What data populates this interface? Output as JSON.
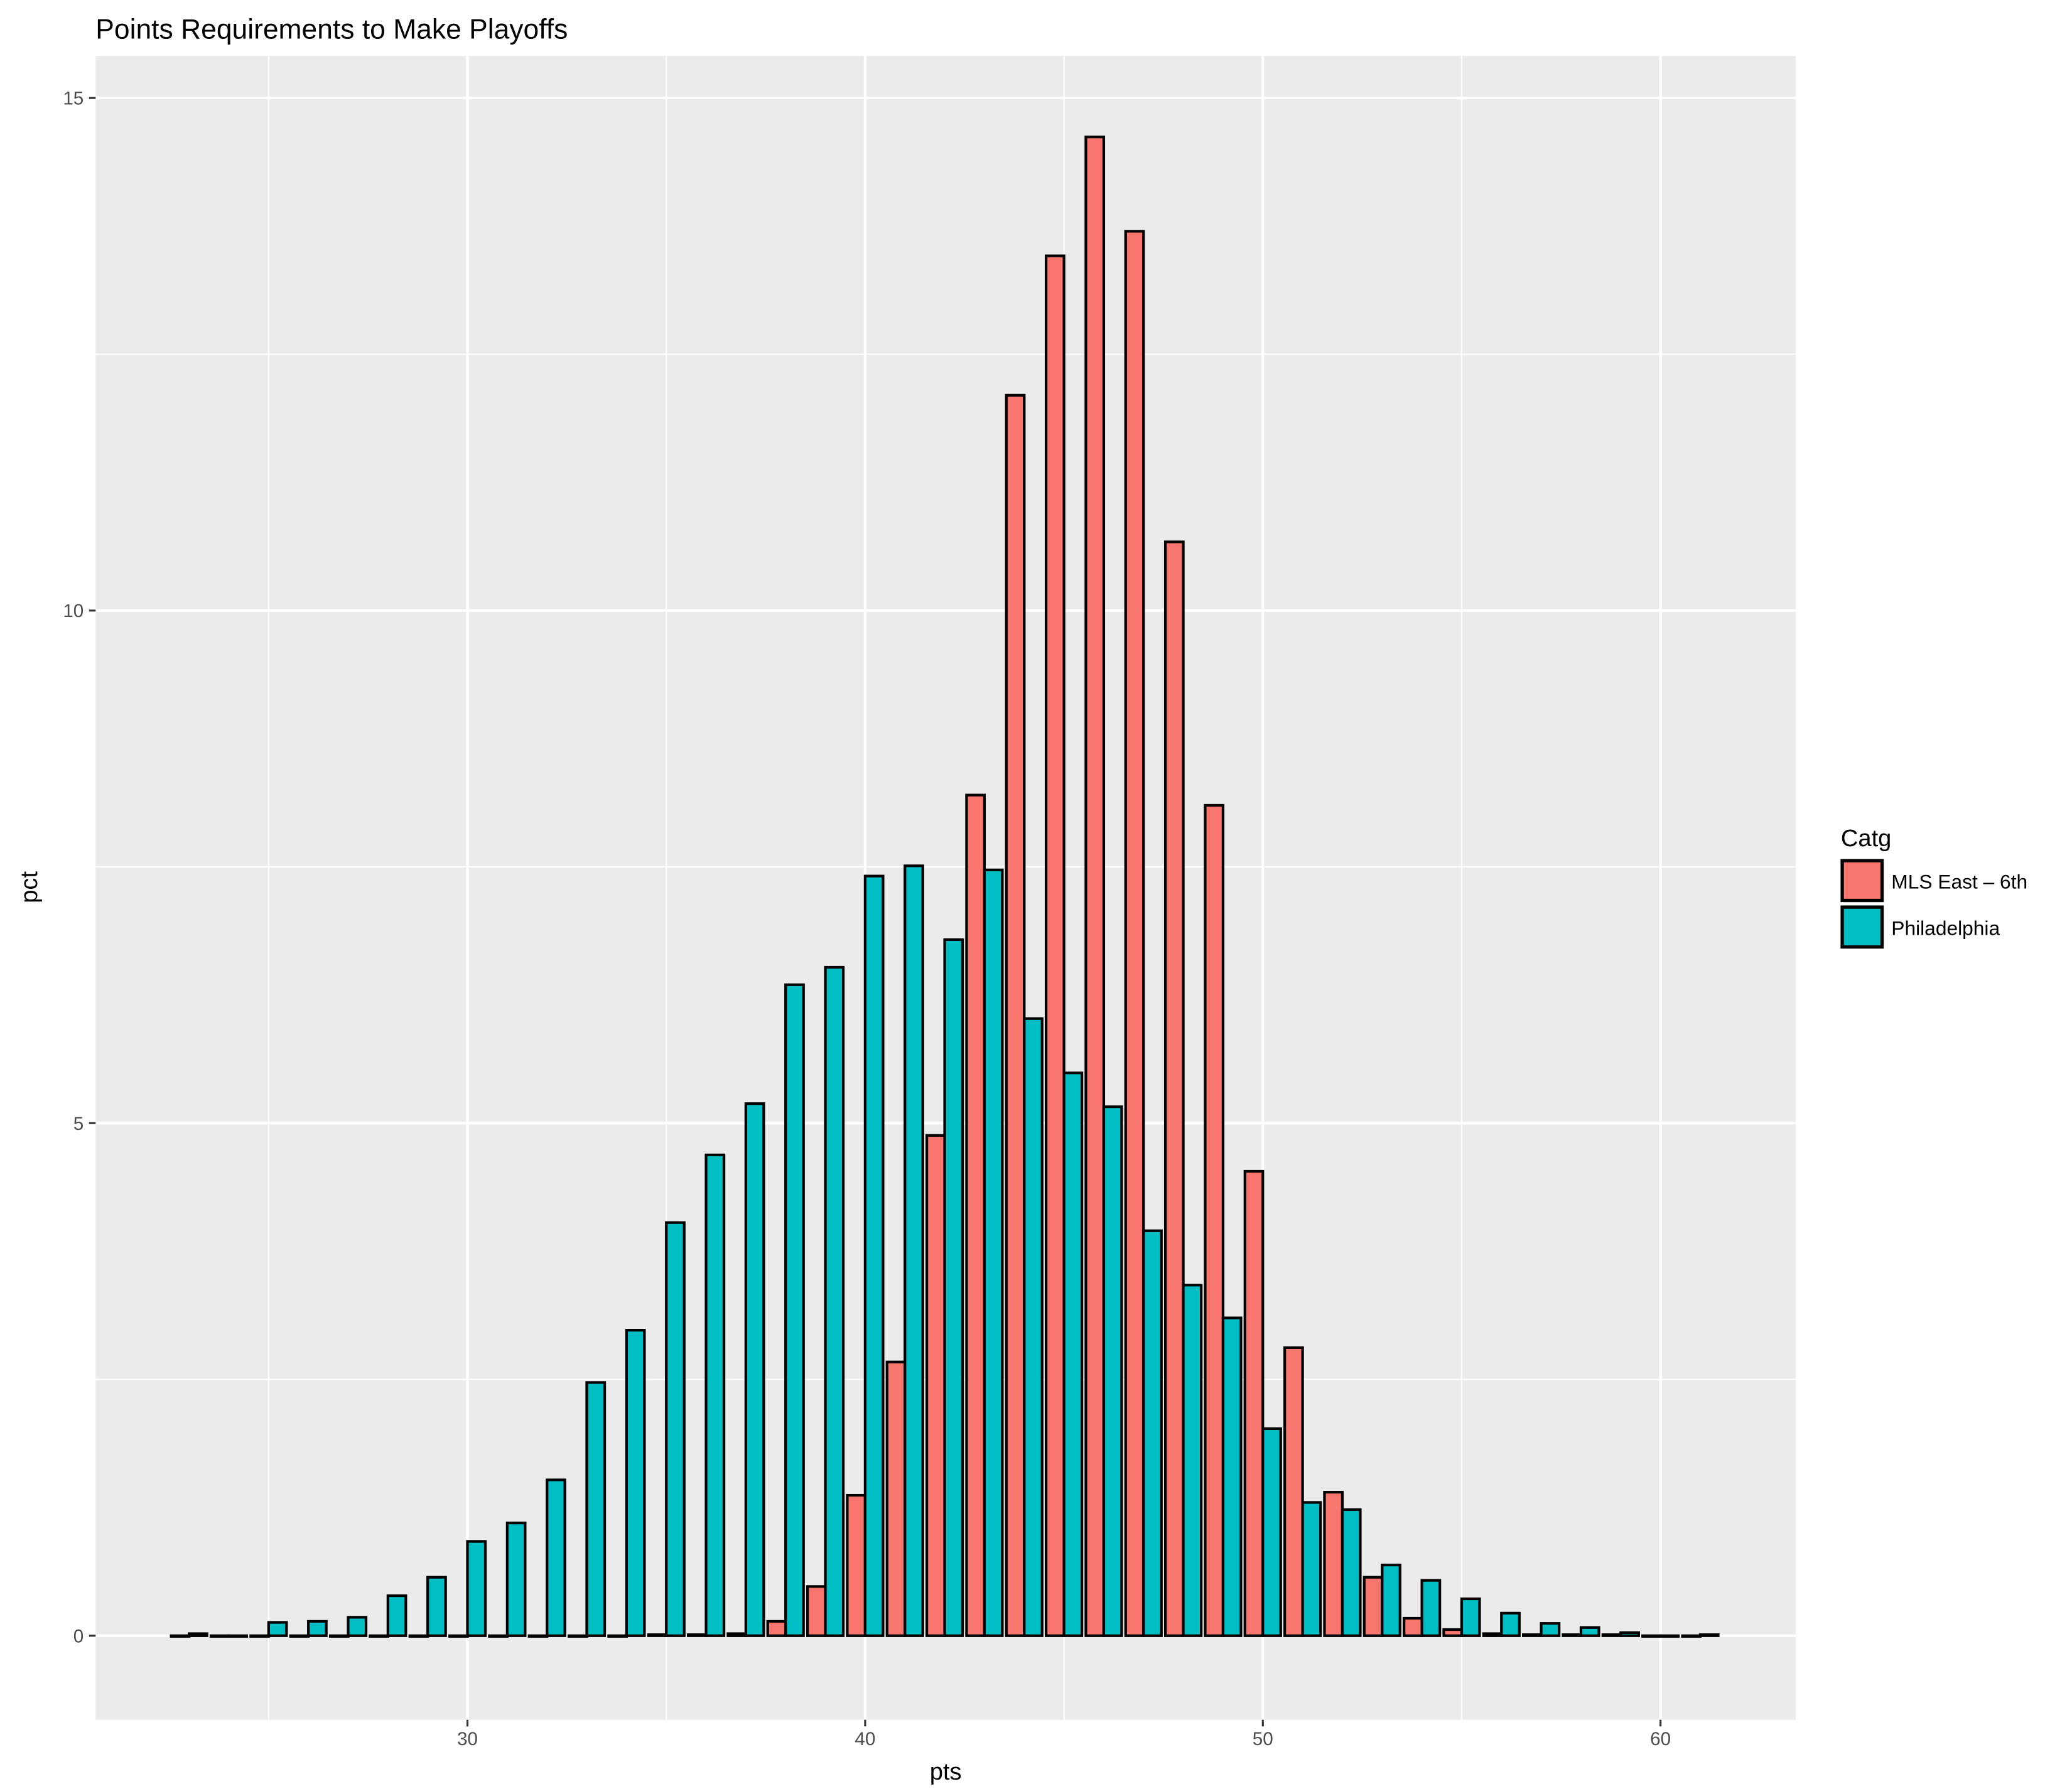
{
  "chart_data": {
    "type": "bar",
    "title": "Points Requirements to Make Playoffs",
    "xlabel": "pts",
    "ylabel": "pct",
    "xlim": [
      20.65,
      63.4
    ],
    "ylim": [
      -0.82,
      15.41
    ],
    "x_ticks": [
      30,
      40,
      50,
      60
    ],
    "y_ticks": [
      0,
      5,
      10,
      15
    ],
    "grid": true,
    "legend": {
      "title": "Catg",
      "placement": "right"
    },
    "x": [
      23,
      24,
      25,
      26,
      27,
      28,
      29,
      30,
      31,
      32,
      33,
      34,
      35,
      36,
      37,
      38,
      39,
      40,
      41,
      42,
      43,
      44,
      45,
      46,
      47,
      48,
      49,
      50,
      51,
      52,
      53,
      54,
      55,
      56,
      57,
      58,
      59,
      60,
      61
    ],
    "series": [
      {
        "name": "MLS East – 6th",
        "color": "#F8766D",
        "values": [
          0,
          0,
          0,
          0,
          0,
          0,
          0,
          0,
          0,
          0,
          0,
          0,
          0.01,
          0.01,
          0.02,
          0.14,
          0.48,
          1.37,
          2.67,
          4.88,
          8.2,
          12.1,
          13.46,
          14.62,
          13.7,
          10.67,
          8.1,
          4.53,
          2.81,
          1.4,
          0.57,
          0.17,
          0.06,
          0.02,
          0.01,
          0.01,
          0.01,
          0,
          0
        ]
      },
      {
        "name": "Philadelphia",
        "color": "#00BFC4",
        "values": [
          0.02,
          0,
          0.13,
          0.14,
          0.18,
          0.39,
          0.57,
          0.92,
          1.1,
          1.52,
          2.47,
          2.98,
          4.03,
          4.69,
          5.19,
          6.35,
          6.52,
          7.41,
          7.51,
          6.79,
          7.47,
          6.02,
          5.49,
          5.16,
          3.95,
          3.42,
          3.1,
          2.02,
          1.3,
          1.23,
          0.69,
          0.54,
          0.36,
          0.22,
          0.12,
          0.08,
          0.03,
          0,
          0.01
        ]
      }
    ]
  }
}
